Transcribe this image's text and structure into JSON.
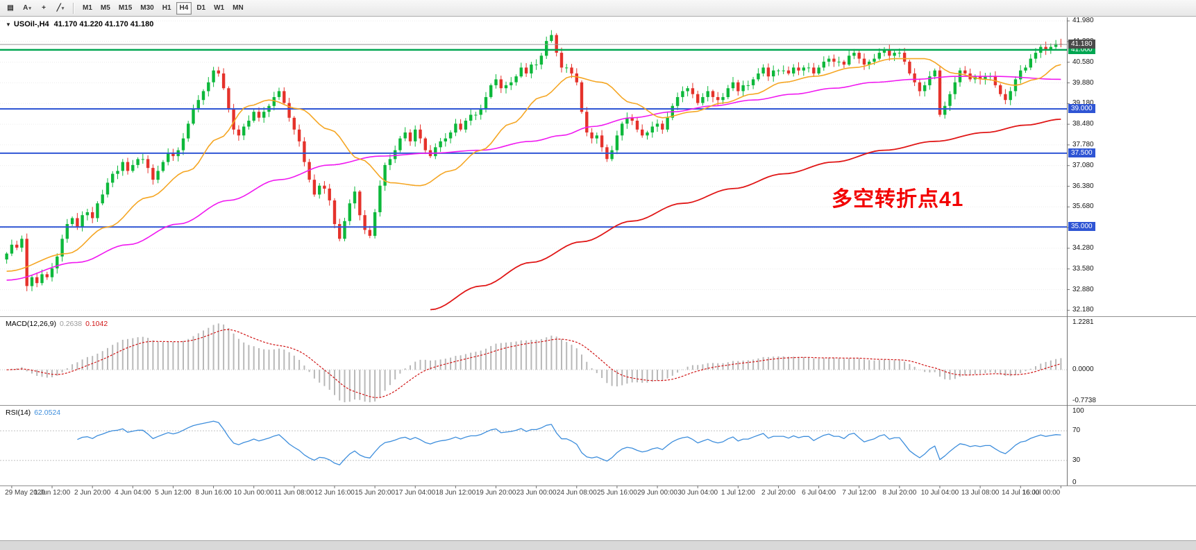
{
  "toolbar": {
    "tools": [
      {
        "name": "symbols-grid",
        "glyph": "▤",
        "dropdown": false
      },
      {
        "name": "cursor-tool",
        "glyph": "A",
        "dropdown": true
      },
      {
        "name": "crosshair-tool",
        "glyph": "+",
        "dropdown": false
      },
      {
        "name": "line-tools",
        "glyph": "╱",
        "dropdown": true
      }
    ],
    "timeframes": [
      "M1",
      "M5",
      "M15",
      "M30",
      "H1",
      "H4",
      "D1",
      "W1",
      "MN"
    ],
    "active_timeframe": "H4"
  },
  "chart": {
    "marker_glyph": "▼",
    "title_symbol": "USOil-,H4",
    "title_ohlc": "41.170 41.220 41.170 41.180",
    "annotation": {
      "text": "多空转折点41",
      "color": "#f20000"
    },
    "current_price": {
      "value": 41.18,
      "label": "41.180",
      "line_color": "#969696",
      "badge_bg": "#4a4a4a"
    },
    "hlines": [
      {
        "price": 41.0,
        "label": "41.000",
        "color": "#00a651",
        "badge_bg": "#00a651",
        "width": 2.5
      },
      {
        "price": 39.0,
        "label": "39.000",
        "color": "#2f55d4",
        "badge_bg": "#2f55d4",
        "width": 2
      },
      {
        "price": 37.5,
        "label": "37.500",
        "color": "#2f55d4",
        "badge_bg": "#2f55d4",
        "width": 2
      },
      {
        "price": 35.0,
        "label": "35.000",
        "color": "#2f55d4",
        "badge_bg": "#2f55d4",
        "width": 2
      }
    ],
    "colors": {
      "up": "#0db83b",
      "down": "#e5322b",
      "ma_fast": "#f5a623",
      "ma_mid": "#f018f0",
      "ma_slow": "#e01616",
      "grid": "#ececec",
      "macd_hist": "#b8b8b8",
      "macd_signal": "#d01414",
      "rsi_line": "#3c8ddc",
      "level_line": "#c0c0c0"
    }
  },
  "chart_data": {
    "type": "candlestick",
    "symbol": "USOil-",
    "timeframe": "H4",
    "price_axis": {
      "min": 32.0,
      "max": 42.1,
      "ticks": [
        41.98,
        41.28,
        40.58,
        39.88,
        39.18,
        38.48,
        37.78,
        37.08,
        36.38,
        35.68,
        34.98,
        34.28,
        33.58,
        32.88,
        32.18
      ]
    },
    "x_labels": [
      "29 May 2020",
      "1 Jun 12:00",
      "2 Jun 20:00",
      "4 Jun 04:00",
      "5 Jun 12:00",
      "8 Jun 16:00",
      "10 Jun 00:00",
      "11 Jun 08:00",
      "12 Jun 16:00",
      "15 Jun 20:00",
      "17 Jun 04:00",
      "18 Jun 12:00",
      "19 Jun 20:00",
      "23 Jun 00:00",
      "24 Jun 08:00",
      "25 Jun 16:00",
      "29 Jun 00:00",
      "30 Jun 04:00",
      "1 Jul 12:00",
      "2 Jul 20:00",
      "6 Jul 04:00",
      "7 Jul 12:00",
      "8 Jul 20:00",
      "10 Jul 04:00",
      "13 Jul 08:00",
      "14 Jul 16:00",
      "16 Jul 00:00"
    ],
    "first_open": 33.9,
    "closes": [
      34.1,
      34.4,
      34.3,
      34.6,
      33.0,
      33.3,
      33.1,
      33.4,
      33.3,
      33.6,
      34.0,
      34.6,
      35.1,
      35.3,
      35.0,
      35.4,
      35.5,
      35.3,
      35.8,
      36.1,
      36.5,
      36.8,
      36.9,
      37.2,
      36.9,
      37.1,
      37.3,
      37.3,
      37.0,
      36.6,
      36.9,
      37.2,
      37.5,
      37.4,
      37.6,
      38.0,
      38.5,
      39.0,
      39.3,
      39.6,
      39.9,
      40.3,
      40.2,
      39.7,
      39.0,
      38.3,
      38.1,
      38.4,
      38.6,
      38.9,
      38.7,
      38.9,
      39.1,
      39.4,
      39.6,
      39.2,
      38.7,
      38.3,
      37.9,
      37.2,
      36.6,
      36.1,
      36.4,
      36.3,
      35.9,
      35.1,
      34.6,
      35.2,
      35.8,
      36.2,
      35.4,
      34.9,
      34.7,
      35.5,
      36.4,
      37.1,
      37.3,
      37.6,
      38.0,
      38.2,
      37.9,
      38.3,
      38.0,
      37.6,
      37.4,
      37.7,
      37.9,
      38.0,
      38.2,
      38.5,
      38.3,
      38.6,
      38.8,
      38.8,
      39.0,
      39.4,
      39.8,
      40.0,
      39.7,
      39.8,
      39.9,
      40.1,
      40.4,
      40.2,
      40.5,
      40.5,
      40.8,
      41.3,
      41.5,
      40.9,
      40.4,
      40.4,
      40.2,
      39.9,
      38.9,
      38.2,
      38.0,
      38.1,
      37.7,
      37.3,
      37.6,
      38.1,
      38.5,
      38.7,
      38.6,
      38.3,
      38.1,
      38.2,
      38.4,
      38.5,
      38.3,
      38.7,
      39.1,
      39.4,
      39.6,
      39.7,
      39.5,
      39.2,
      39.4,
      39.6,
      39.4,
      39.3,
      39.4,
      39.7,
      39.9,
      39.6,
      39.8,
      39.8,
      40.0,
      40.2,
      40.4,
      40.1,
      40.3,
      40.3,
      40.3,
      40.2,
      40.4,
      40.3,
      40.4,
      40.4,
      40.2,
      40.4,
      40.6,
      40.7,
      40.6,
      40.6,
      40.5,
      40.8,
      40.9,
      40.7,
      40.5,
      40.6,
      40.7,
      40.9,
      41.0,
      40.8,
      40.9,
      40.9,
      40.6,
      40.2,
      39.9,
      39.6,
      39.8,
      40.1,
      40.3,
      38.8,
      39.1,
      39.5,
      39.9,
      40.3,
      40.2,
      40.0,
      40.1,
      40.0,
      40.1,
      40.1,
      39.8,
      39.5,
      39.3,
      39.6,
      40.0,
      40.3,
      40.4,
      40.7,
      40.9,
      41.1,
      41.0,
      41.1,
      41.2,
      41.18
    ],
    "overlays": {
      "ma_fast_points": [
        [
          0,
          33.5
        ],
        [
          12,
          34.1
        ],
        [
          20,
          35.0
        ],
        [
          28,
          36.0
        ],
        [
          36,
          36.9
        ],
        [
          42,
          38.0
        ],
        [
          48,
          39.1
        ],
        [
          52,
          39.3
        ],
        [
          58,
          39.0
        ],
        [
          64,
          38.3
        ],
        [
          70,
          37.3
        ],
        [
          76,
          36.5
        ],
        [
          82,
          36.4
        ],
        [
          88,
          36.9
        ],
        [
          94,
          37.6
        ],
        [
          100,
          38.5
        ],
        [
          106,
          39.4
        ],
        [
          112,
          40.1
        ],
        [
          118,
          39.9
        ],
        [
          124,
          39.2
        ],
        [
          130,
          38.7
        ],
        [
          136,
          38.9
        ],
        [
          142,
          39.2
        ],
        [
          148,
          39.5
        ],
        [
          154,
          39.9
        ],
        [
          160,
          40.1
        ],
        [
          168,
          40.4
        ],
        [
          176,
          40.7
        ],
        [
          182,
          40.7
        ],
        [
          188,
          40.2
        ],
        [
          194,
          40.0
        ],
        [
          200,
          39.8
        ],
        [
          204,
          40.0
        ],
        [
          209,
          40.5
        ]
      ],
      "ma_mid_points": [
        [
          0,
          33.2
        ],
        [
          14,
          33.8
        ],
        [
          24,
          34.4
        ],
        [
          34,
          35.1
        ],
        [
          44,
          35.9
        ],
        [
          54,
          36.6
        ],
        [
          64,
          37.1
        ],
        [
          74,
          37.4
        ],
        [
          84,
          37.5
        ],
        [
          94,
          37.6
        ],
        [
          104,
          37.9
        ],
        [
          110,
          38.1
        ],
        [
          116,
          38.4
        ],
        [
          124,
          38.7
        ],
        [
          132,
          38.9
        ],
        [
          140,
          39.1
        ],
        [
          148,
          39.3
        ],
        [
          156,
          39.5
        ],
        [
          164,
          39.7
        ],
        [
          172,
          39.9
        ],
        [
          180,
          40.0
        ],
        [
          188,
          40.1
        ],
        [
          196,
          40.1
        ],
        [
          209,
          40.0
        ]
      ],
      "ma_slow_points": [
        [
          84,
          32.2
        ],
        [
          94,
          33.0
        ],
        [
          104,
          33.8
        ],
        [
          114,
          34.5
        ],
        [
          124,
          35.2
        ],
        [
          134,
          35.8
        ],
        [
          144,
          36.3
        ],
        [
          154,
          36.8
        ],
        [
          164,
          37.2
        ],
        [
          174,
          37.6
        ],
        [
          184,
          37.9
        ],
        [
          194,
          38.2
        ],
        [
          202,
          38.45
        ],
        [
          209,
          38.65
        ]
      ]
    },
    "macd": {
      "label": "MACD(12,26,9)",
      "value_main": "0.2638",
      "value_signal": "0.1042",
      "fast": 12,
      "slow": 26,
      "signal": 9,
      "axis": {
        "max": 1.2281,
        "min": -0.7738,
        "labels": [
          "1.2281",
          "0.0000",
          "-0.7738"
        ]
      }
    },
    "rsi": {
      "label": "RSI(14)",
      "period": 14,
      "value": "62.0524",
      "levels": [
        70,
        30
      ],
      "axis_ticks": [
        100,
        70,
        30,
        0
      ]
    }
  }
}
